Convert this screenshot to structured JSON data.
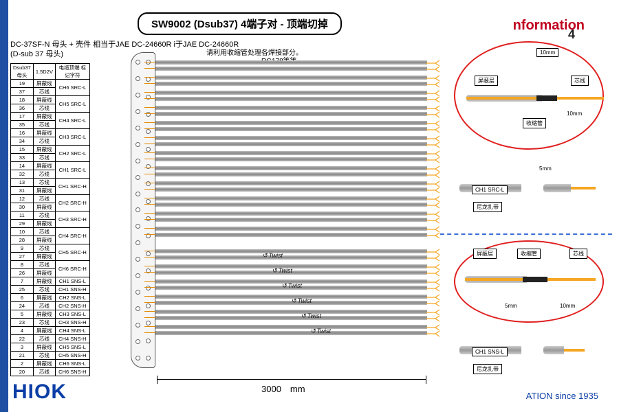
{
  "title": "SW9002 (Dsub37) 4端子对 - 顶端切掉",
  "header_right": "nformation",
  "page_num": "4",
  "sub1": "DC-37SF-N 母头 + 壳件 相当于JAE DC-24660R i于JAE DC-24660R",
  "sub2": "(D-sub 37 母头)",
  "sub3": "请利用收缩管处理各焊接部分。",
  "sub4": "RG178等等",
  "pin_table": {
    "headers": [
      "Dsub37\n母头",
      "1.5D2V",
      "电缆顶端\n标记字符"
    ],
    "rows": [
      [
        "19",
        "屏蔽线",
        "CH6 SRC-L"
      ],
      [
        "37",
        "芯线",
        ""
      ],
      [
        "18",
        "屏蔽线",
        "CH5 SRC-L"
      ],
      [
        "36",
        "芯线",
        ""
      ],
      [
        "17",
        "屏蔽线",
        "CH4 SRC-L"
      ],
      [
        "35",
        "芯线",
        ""
      ],
      [
        "16",
        "屏蔽线",
        "CH3 SRC-L"
      ],
      [
        "34",
        "芯线",
        ""
      ],
      [
        "15",
        "屏蔽线",
        "CH2 SRC-L"
      ],
      [
        "33",
        "芯线",
        ""
      ],
      [
        "14",
        "屏蔽线",
        "CH1 SRC-L"
      ],
      [
        "32",
        "芯线",
        ""
      ],
      [
        "13",
        "芯线",
        "CH1 SRC-H"
      ],
      [
        "31",
        "屏蔽线",
        ""
      ],
      [
        "12",
        "芯线",
        "CH2 SRC-H"
      ],
      [
        "30",
        "屏蔽线",
        ""
      ],
      [
        "11",
        "芯线",
        "CH3 SRC-H"
      ],
      [
        "29",
        "屏蔽线",
        ""
      ],
      [
        "10",
        "芯线",
        "CH4 SRC-H"
      ],
      [
        "28",
        "屏蔽线",
        ""
      ],
      [
        "9",
        "芯线",
        "CH5 SRC-H"
      ],
      [
        "27",
        "屏蔽线",
        ""
      ],
      [
        "8",
        "芯线",
        "CH6 SRC-H"
      ],
      [
        "26",
        "屏蔽线",
        ""
      ],
      [
        "7",
        "屏蔽线",
        "CH1 SNS-L"
      ],
      [
        "25",
        "芯线",
        "CH1 SNS-H"
      ],
      [
        "6",
        "屏蔽线",
        "CH2 SNS-L"
      ],
      [
        "24",
        "芯线",
        "CH2 SNS-H"
      ],
      [
        "5",
        "屏蔽线",
        "CH3 SNS-L"
      ],
      [
        "23",
        "芯线",
        "CH3 SNS-H"
      ],
      [
        "4",
        "屏蔽线",
        "CH4 SNS-L"
      ],
      [
        "22",
        "芯线",
        "CH4 SNS-H"
      ],
      [
        "3",
        "屏蔽线",
        "CH5 SNS-L"
      ],
      [
        "21",
        "芯线",
        "CH5 SNS-H"
      ],
      [
        "2",
        "屏蔽线",
        "CH6 SNS-L"
      ],
      [
        "20",
        "芯线",
        "CH6 SNS-H"
      ]
    ]
  },
  "cable_groups": {
    "src": 12,
    "sns": 6
  },
  "twist_label": "Twist",
  "length_dim": "3000　mm",
  "detail_a": {
    "dim_top": "10mm",
    "dim_bot": "10mm",
    "lbl_shield": "屏蔽层",
    "lbl_core": "芯线",
    "lbl_shrink": "收缩管"
  },
  "detail_b": {
    "dim": "5mm",
    "lbl": "CH1 SRC-L",
    "tie": "尼龙扎带"
  },
  "detail_c": {
    "lbl_shield": "屏蔽层",
    "lbl_shrink": "收缩管",
    "lbl_core": "芯线",
    "dim1": "5mm",
    "dim2": "10mm"
  },
  "detail_d": {
    "lbl": "CH1 SNS-L",
    "tie": "尼龙扎带"
  },
  "logo": "HIOK",
  "footer": "ATION since 1935",
  "colors": {
    "brand": "#0b3ea6",
    "red": "#e02020",
    "cable": "#999",
    "copper": "#f5a623"
  }
}
